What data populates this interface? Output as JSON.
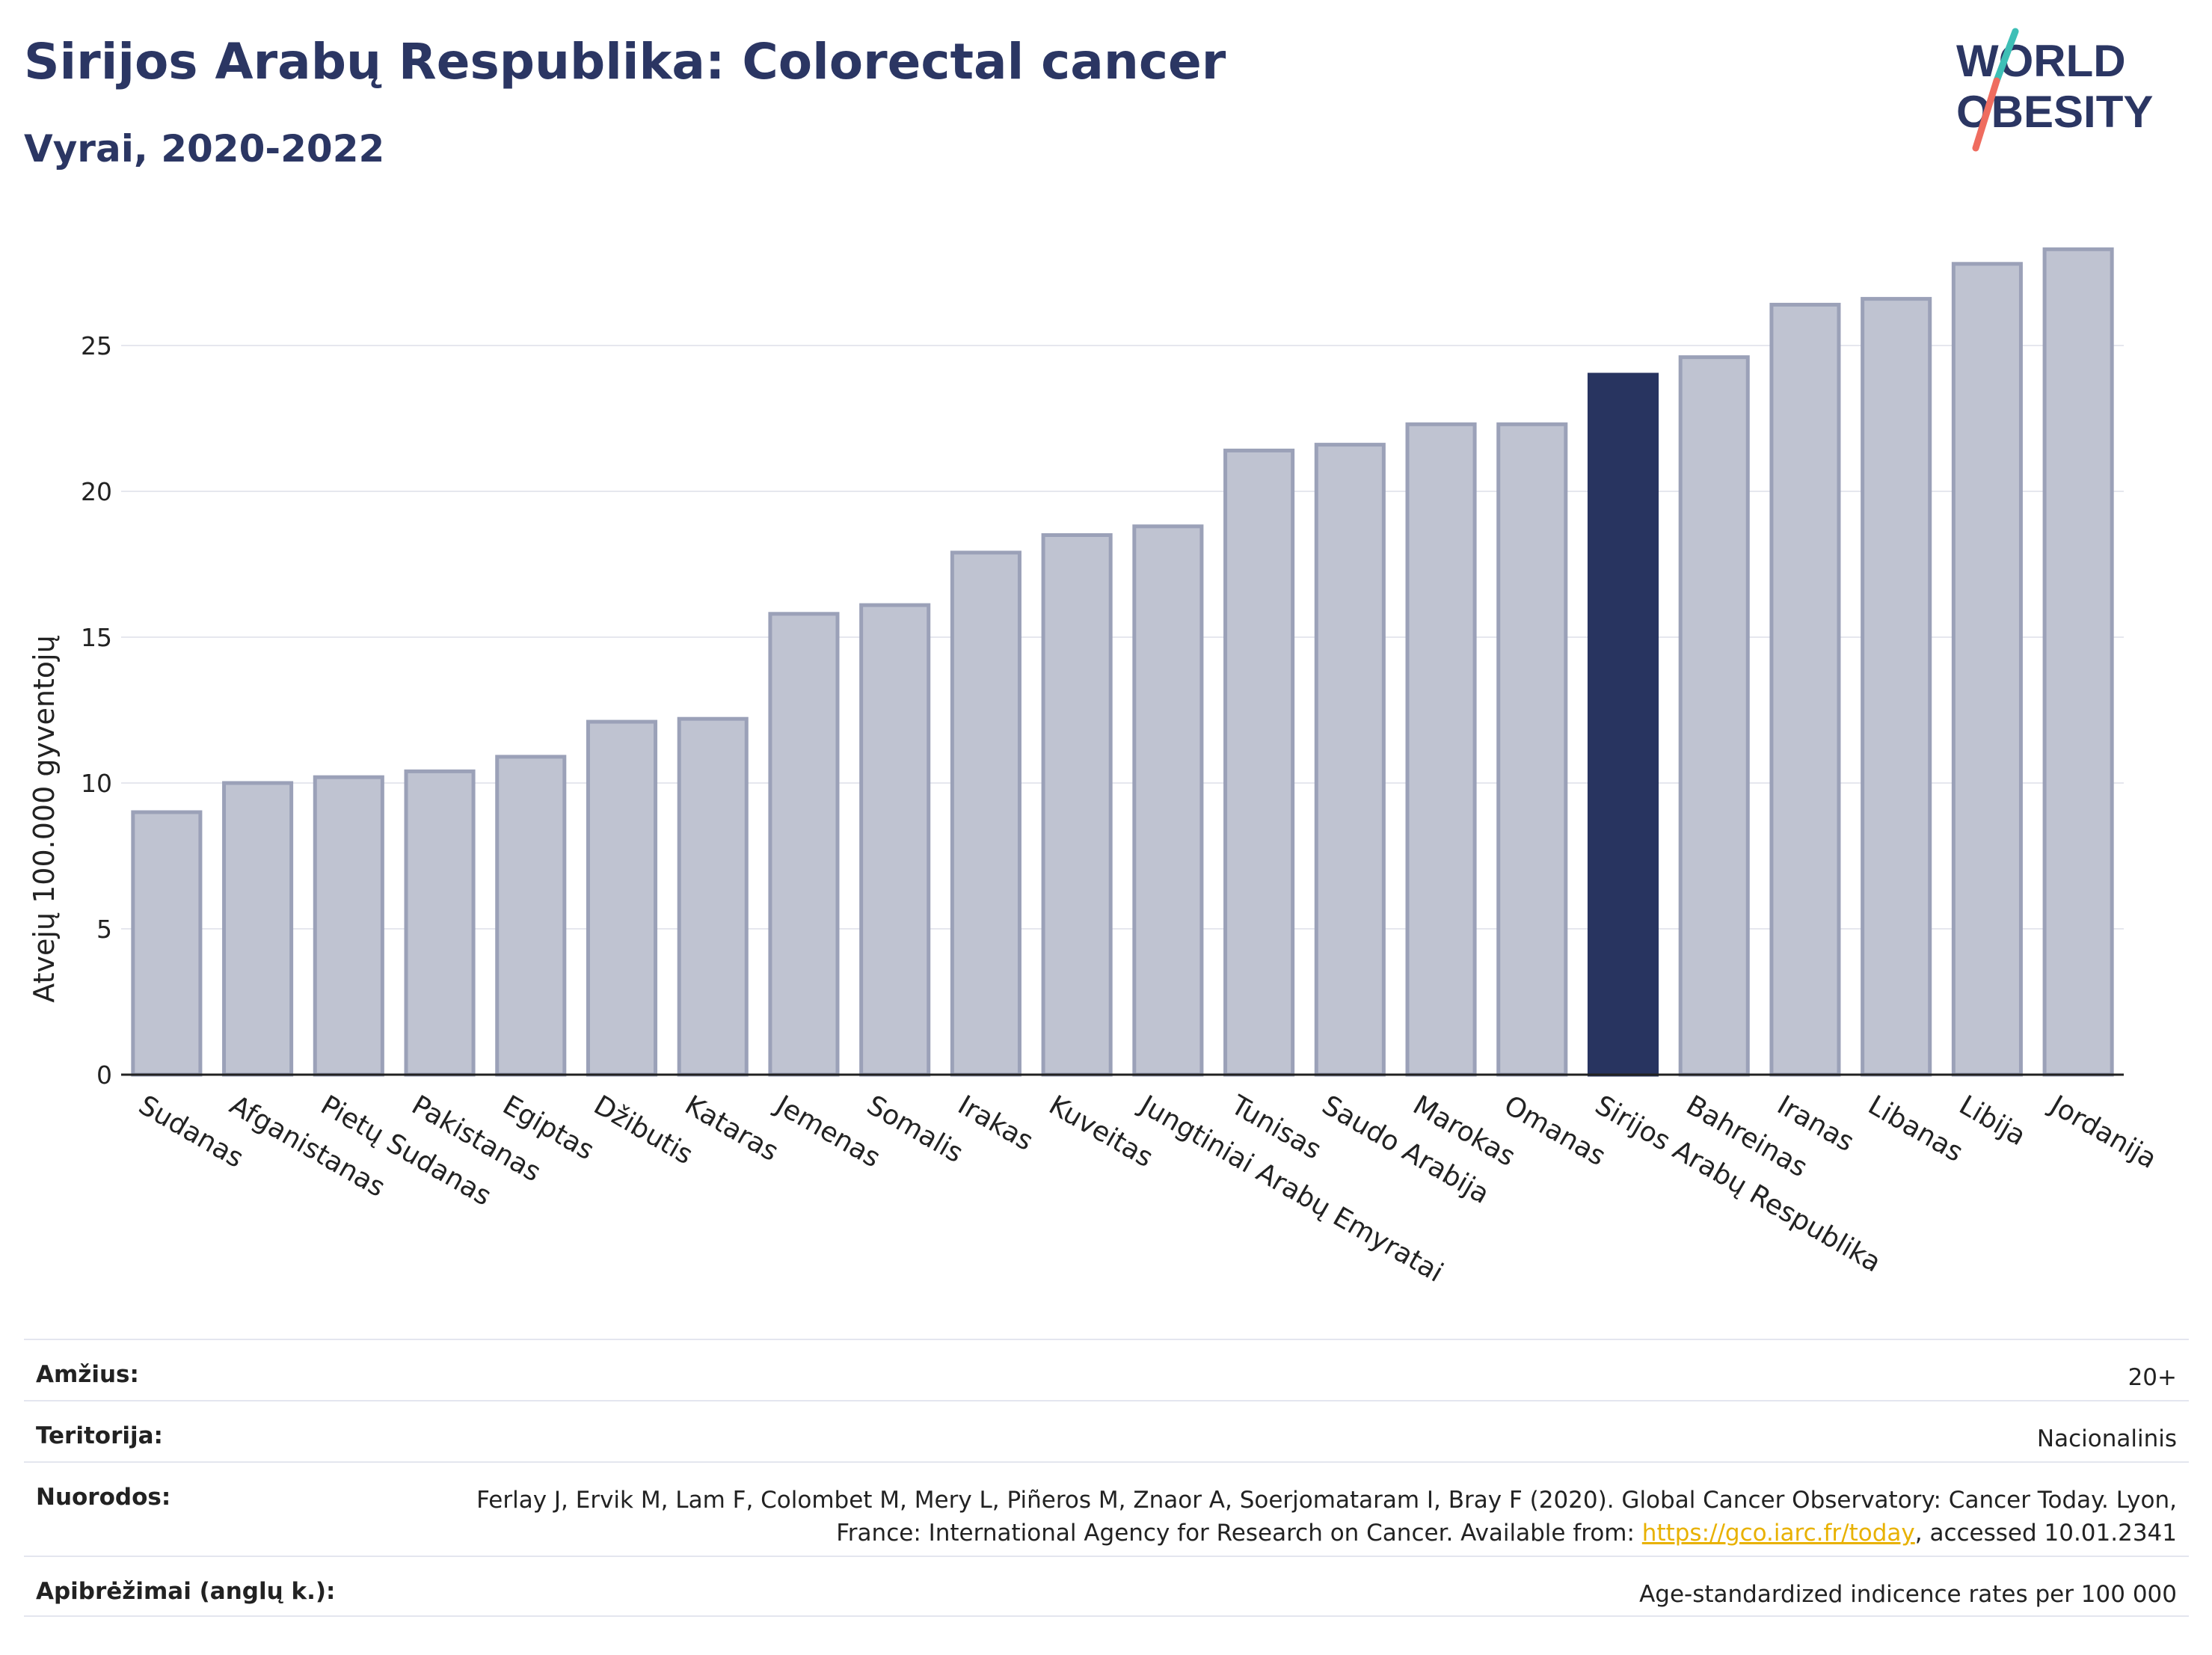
{
  "header": {
    "title": "Sirijos Arabų Respublika: Colorectal cancer",
    "subtitle": "Vyrai, 2020-2022"
  },
  "logo": {
    "line1": "WORLD",
    "line2": "OBESITY"
  },
  "colors": {
    "bar": "#bfc3d1",
    "bar_border": "#9ba1b8",
    "highlight": "#283460",
    "title": "#2b3663",
    "link": "#e8b100"
  },
  "chart_data": {
    "type": "bar",
    "title": "Sirijos Arabų Respublika: Colorectal cancer",
    "subtitle": "Vyrai, 2020-2022",
    "ylabel": "Atvejų 100.000 gyventojų",
    "xlabel": "",
    "ylim": [
      0,
      29
    ],
    "yticks": [
      0,
      5,
      10,
      15,
      20,
      25
    ],
    "grid": true,
    "highlight": "Sirijos Arabų Respublika",
    "categories": [
      "Sudanas",
      "Afganistanas",
      "Pietų Sudanas",
      "Pakistanas",
      "Egiptas",
      "Džibutis",
      "Kataras",
      "Jemenas",
      "Somalis",
      "Irakas",
      "Kuveitas",
      "Jungtiniai Arabų Emyratai",
      "Tunisas",
      "Saudo Arabija",
      "Marokas",
      "Omanas",
      "Sirijos Arabų Respublika",
      "Bahreinas",
      "Iranas",
      "Libanas",
      "Libija",
      "Jordanija"
    ],
    "values": [
      9.0,
      10.0,
      10.2,
      10.4,
      10.9,
      12.1,
      12.2,
      15.8,
      16.1,
      17.9,
      18.5,
      18.8,
      21.4,
      21.6,
      22.3,
      22.3,
      24.0,
      24.6,
      26.4,
      26.6,
      27.8,
      28.3
    ]
  },
  "info": {
    "age_label": "Amžius:",
    "age_value": "20+",
    "territory_label": "Teritorija:",
    "territory_value": "Nacionalinis",
    "refs_label": "Nuorodos:",
    "refs_text": "Ferlay J, Ervik M, Lam F, Colombet M, Mery L, Piñeros M, Znaor A, Soerjomataram I, Bray F (2020). Global Cancer Observatory: Cancer Today. Lyon, France: International Agency for Research on Cancer. Available from: ",
    "refs_link": "https://gco.iarc.fr/today",
    "refs_tail": ", accessed 10.01.2341",
    "defs_label": "Apibrėžimai (anglų k.):",
    "defs_value": "Age-standardized indicence rates per 100 000"
  }
}
